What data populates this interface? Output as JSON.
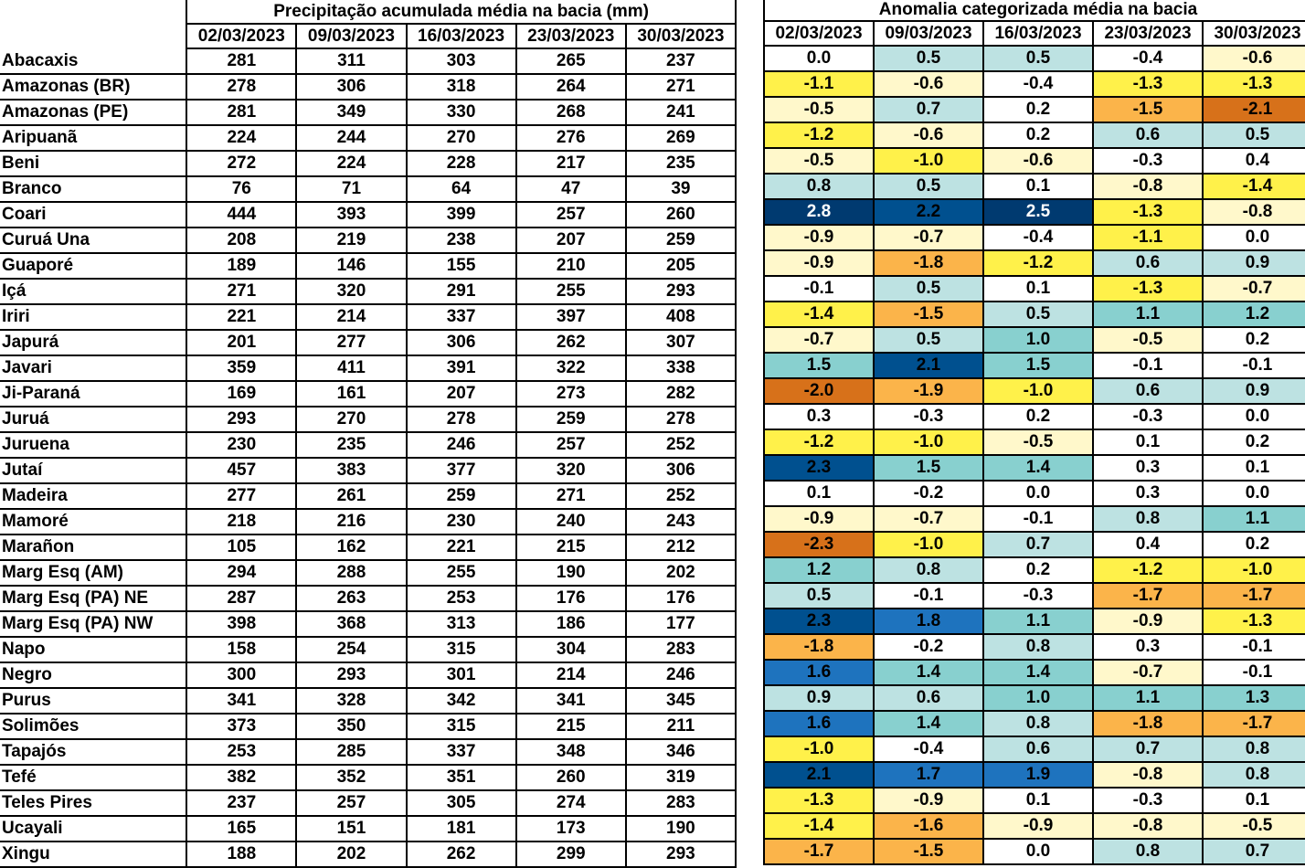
{
  "precipitation_table": {
    "title": "Precipitação acumulada média na bacia (mm)",
    "dates": [
      "02/03/2023",
      "09/03/2023",
      "16/03/2023",
      "23/03/2023",
      "30/03/2023"
    ]
  },
  "anomaly_table": {
    "title": "Anomalia categorizada média na bacia",
    "dates": [
      "02/03/2023",
      "09/03/2023",
      "16/03/2023",
      "23/03/2023",
      "30/03/2023"
    ]
  },
  "category_colors": {
    "wn": "#003a70",
    "w3": "#00508f",
    "w2": "#1e73be",
    "w1": "#88d0cf",
    "w0": "#bde2e2",
    "n": "#ffffff",
    "d0": "#fff8cb",
    "d1": "#fff14a",
    "d2": "#fbb44a",
    "d3": "#d7711a"
  },
  "rows": [
    {
      "name": "Abacaxis",
      "precip": [
        "281",
        "311",
        "303",
        "265",
        "237"
      ],
      "anom": [
        "0.0",
        "0.5",
        "0.5",
        "-0.4",
        "-0.6"
      ],
      "cat": [
        "n",
        "w0",
        "w0",
        "n",
        "d0"
      ]
    },
    {
      "name": "Amazonas (BR)",
      "precip": [
        "278",
        "306",
        "318",
        "264",
        "271"
      ],
      "anom": [
        "-1.1",
        "-0.6",
        "-0.4",
        "-1.3",
        "-1.3"
      ],
      "cat": [
        "d1",
        "d0",
        "n",
        "d1",
        "d1"
      ]
    },
    {
      "name": "Amazonas (PE)",
      "precip": [
        "281",
        "349",
        "330",
        "268",
        "241"
      ],
      "anom": [
        "-0.5",
        "0.7",
        "0.2",
        "-1.5",
        "-2.1"
      ],
      "cat": [
        "d0",
        "w0",
        "n",
        "d2",
        "d3"
      ]
    },
    {
      "name": "Aripuanã",
      "precip": [
        "224",
        "244",
        "270",
        "276",
        "269"
      ],
      "anom": [
        "-1.2",
        "-0.6",
        "0.2",
        "0.6",
        "0.5"
      ],
      "cat": [
        "d1",
        "d0",
        "n",
        "w0",
        "w0"
      ]
    },
    {
      "name": "Beni",
      "precip": [
        "272",
        "224",
        "228",
        "217",
        "235"
      ],
      "anom": [
        "-0.5",
        "-1.0",
        "-0.6",
        "-0.3",
        "0.4"
      ],
      "cat": [
        "d0",
        "d1",
        "d0",
        "n",
        "n"
      ]
    },
    {
      "name": "Branco",
      "precip": [
        "76",
        "71",
        "64",
        "47",
        "39"
      ],
      "anom": [
        "0.8",
        "0.5",
        "0.1",
        "-0.8",
        "-1.4"
      ],
      "cat": [
        "w0",
        "w0",
        "n",
        "d0",
        "d1"
      ]
    },
    {
      "name": "Coari",
      "precip": [
        "444",
        "393",
        "399",
        "257",
        "260"
      ],
      "anom": [
        "2.8",
        "2.2",
        "2.5",
        "-1.3",
        "-0.8"
      ],
      "cat": [
        "wn",
        "w3",
        "wn",
        "d1",
        "d0"
      ]
    },
    {
      "name": "Curuá Una",
      "precip": [
        "208",
        "219",
        "238",
        "207",
        "259"
      ],
      "anom": [
        "-0.9",
        "-0.7",
        "-0.4",
        "-1.1",
        "0.0"
      ],
      "cat": [
        "d0",
        "d0",
        "n",
        "d1",
        "n"
      ]
    },
    {
      "name": "Guaporé",
      "precip": [
        "189",
        "146",
        "155",
        "210",
        "205"
      ],
      "anom": [
        "-0.9",
        "-1.8",
        "-1.2",
        "0.6",
        "0.9"
      ],
      "cat": [
        "d0",
        "d2",
        "d1",
        "w0",
        "w0"
      ]
    },
    {
      "name": "Içá",
      "precip": [
        "271",
        "320",
        "291",
        "255",
        "293"
      ],
      "anom": [
        "-0.1",
        "0.5",
        "0.1",
        "-1.3",
        "-0.7"
      ],
      "cat": [
        "n",
        "w0",
        "n",
        "d1",
        "d0"
      ]
    },
    {
      "name": "Iriri",
      "precip": [
        "221",
        "214",
        "337",
        "397",
        "408"
      ],
      "anom": [
        "-1.4",
        "-1.5",
        "0.5",
        "1.1",
        "1.2"
      ],
      "cat": [
        "d1",
        "d2",
        "w0",
        "w1",
        "w1"
      ]
    },
    {
      "name": "Japurá",
      "precip": [
        "201",
        "277",
        "306",
        "262",
        "307"
      ],
      "anom": [
        "-0.7",
        "0.5",
        "1.0",
        "-0.5",
        "0.2"
      ],
      "cat": [
        "d0",
        "w0",
        "w1",
        "d0",
        "n"
      ]
    },
    {
      "name": "Javari",
      "precip": [
        "359",
        "411",
        "391",
        "322",
        "338"
      ],
      "anom": [
        "1.5",
        "2.1",
        "1.5",
        "-0.1",
        "-0.1"
      ],
      "cat": [
        "w1",
        "w3",
        "w1",
        "n",
        "n"
      ]
    },
    {
      "name": "Ji-Paraná",
      "precip": [
        "169",
        "161",
        "207",
        "273",
        "282"
      ],
      "anom": [
        "-2.0",
        "-1.9",
        "-1.0",
        "0.6",
        "0.9"
      ],
      "cat": [
        "d3",
        "d2",
        "d1",
        "w0",
        "w0"
      ]
    },
    {
      "name": "Juruá",
      "precip": [
        "293",
        "270",
        "278",
        "259",
        "278"
      ],
      "anom": [
        "0.3",
        "-0.3",
        "0.2",
        "-0.3",
        "0.0"
      ],
      "cat": [
        "n",
        "n",
        "n",
        "n",
        "n"
      ]
    },
    {
      "name": "Juruena",
      "precip": [
        "230",
        "235",
        "246",
        "257",
        "252"
      ],
      "anom": [
        "-1.2",
        "-1.0",
        "-0.5",
        "0.1",
        "0.2"
      ],
      "cat": [
        "d1",
        "d1",
        "d0",
        "n",
        "n"
      ]
    },
    {
      "name": "Jutaí",
      "precip": [
        "457",
        "383",
        "377",
        "320",
        "306"
      ],
      "anom": [
        "2.3",
        "1.5",
        "1.4",
        "0.3",
        "0.1"
      ],
      "cat": [
        "w3",
        "w1",
        "w1",
        "n",
        "n"
      ]
    },
    {
      "name": "Madeira",
      "precip": [
        "277",
        "261",
        "259",
        "271",
        "252"
      ],
      "anom": [
        "0.1",
        "-0.2",
        "0.0",
        "0.3",
        "0.0"
      ],
      "cat": [
        "n",
        "n",
        "n",
        "n",
        "n"
      ]
    },
    {
      "name": "Mamoré",
      "precip": [
        "218",
        "216",
        "230",
        "240",
        "243"
      ],
      "anom": [
        "-0.9",
        "-0.7",
        "-0.1",
        "0.8",
        "1.1"
      ],
      "cat": [
        "d0",
        "d0",
        "n",
        "w0",
        "w1"
      ]
    },
    {
      "name": "Marañon",
      "precip": [
        "105",
        "162",
        "221",
        "215",
        "212"
      ],
      "anom": [
        "-2.3",
        "-1.0",
        "0.7",
        "0.4",
        "0.2"
      ],
      "cat": [
        "d3",
        "d1",
        "w0",
        "n",
        "n"
      ]
    },
    {
      "name": "Marg Esq (AM)",
      "precip": [
        "294",
        "288",
        "255",
        "190",
        "202"
      ],
      "anom": [
        "1.2",
        "0.8",
        "0.2",
        "-1.2",
        "-1.0"
      ],
      "cat": [
        "w1",
        "w0",
        "n",
        "d1",
        "d1"
      ]
    },
    {
      "name": "Marg Esq (PA) NE",
      "precip": [
        "287",
        "263",
        "253",
        "176",
        "176"
      ],
      "anom": [
        "0.5",
        "-0.1",
        "-0.3",
        "-1.7",
        "-1.7"
      ],
      "cat": [
        "w0",
        "n",
        "n",
        "d2",
        "d2"
      ]
    },
    {
      "name": "Marg Esq (PA) NW",
      "precip": [
        "398",
        "368",
        "313",
        "186",
        "177"
      ],
      "anom": [
        "2.3",
        "1.8",
        "1.1",
        "-0.9",
        "-1.3"
      ],
      "cat": [
        "w3",
        "w2",
        "w1",
        "d0",
        "d1"
      ]
    },
    {
      "name": "Napo",
      "precip": [
        "158",
        "254",
        "315",
        "304",
        "283"
      ],
      "anom": [
        "-1.8",
        "-0.2",
        "0.8",
        "0.3",
        "-0.1"
      ],
      "cat": [
        "d2",
        "n",
        "w0",
        "n",
        "n"
      ]
    },
    {
      "name": "Negro",
      "precip": [
        "300",
        "293",
        "301",
        "214",
        "246"
      ],
      "anom": [
        "1.6",
        "1.4",
        "1.4",
        "-0.7",
        "-0.1"
      ],
      "cat": [
        "w2",
        "w1",
        "w1",
        "d0",
        "n"
      ]
    },
    {
      "name": "Purus",
      "precip": [
        "341",
        "328",
        "342",
        "341",
        "345"
      ],
      "anom": [
        "0.9",
        "0.6",
        "1.0",
        "1.1",
        "1.3"
      ],
      "cat": [
        "w0",
        "w0",
        "w1",
        "w1",
        "w1"
      ]
    },
    {
      "name": "Solimões",
      "precip": [
        "373",
        "350",
        "315",
        "215",
        "211"
      ],
      "anom": [
        "1.6",
        "1.4",
        "0.8",
        "-1.8",
        "-1.7"
      ],
      "cat": [
        "w2",
        "w1",
        "w0",
        "d2",
        "d2"
      ]
    },
    {
      "name": "Tapajós",
      "precip": [
        "253",
        "285",
        "337",
        "348",
        "346"
      ],
      "anom": [
        "-1.0",
        "-0.4",
        "0.6",
        "0.7",
        "0.8"
      ],
      "cat": [
        "d1",
        "n",
        "w0",
        "w0",
        "w0"
      ]
    },
    {
      "name": "Tefé",
      "precip": [
        "382",
        "352",
        "351",
        "260",
        "319"
      ],
      "anom": [
        "2.1",
        "1.7",
        "1.9",
        "-0.8",
        "0.8"
      ],
      "cat": [
        "w3",
        "w2",
        "w2",
        "d0",
        "w0"
      ]
    },
    {
      "name": "Teles Pires",
      "precip": [
        "237",
        "257",
        "305",
        "274",
        "283"
      ],
      "anom": [
        "-1.3",
        "-0.9",
        "0.1",
        "-0.3",
        "0.1"
      ],
      "cat": [
        "d1",
        "d0",
        "n",
        "n",
        "n"
      ]
    },
    {
      "name": "Ucayali",
      "precip": [
        "165",
        "151",
        "181",
        "173",
        "190"
      ],
      "anom": [
        "-1.4",
        "-1.6",
        "-0.9",
        "-0.8",
        "-0.5"
      ],
      "cat": [
        "d1",
        "d2",
        "d0",
        "d0",
        "d0"
      ]
    },
    {
      "name": "Xingu",
      "precip": [
        "188",
        "202",
        "262",
        "299",
        "293"
      ],
      "anom": [
        "-1.7",
        "-1.5",
        "0.0",
        "0.8",
        "0.7"
      ],
      "cat": [
        "d2",
        "d2",
        "n",
        "w0",
        "w0"
      ]
    }
  ]
}
